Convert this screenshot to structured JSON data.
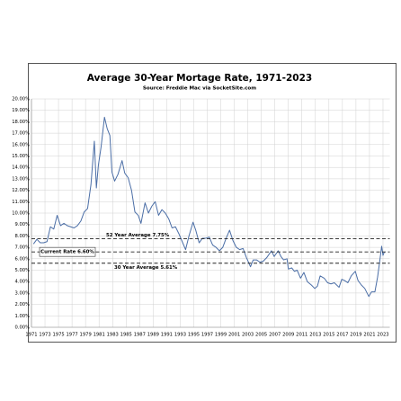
{
  "chart_data": {
    "type": "line",
    "title": "Average 30-Year Mortage Rate, 1971-2023",
    "subtitle": "Source: Freddie Mac via SocketSite.com",
    "xlim": [
      1971,
      2024
    ],
    "xticks": [
      1971,
      1973,
      1975,
      1977,
      1979,
      1981,
      1983,
      1985,
      1987,
      1989,
      1991,
      1993,
      1995,
      1997,
      1999,
      2001,
      2003,
      2005,
      2007,
      2009,
      2011,
      2013,
      2015,
      2017,
      2019,
      2021,
      2023
    ],
    "ylim": [
      0,
      20
    ],
    "yticks": [
      {
        "value": 0,
        "label": "0.00%"
      },
      {
        "value": 1,
        "label": "1.00%"
      },
      {
        "value": 2,
        "label": "2.00%"
      },
      {
        "value": 3,
        "label": "3.00%"
      },
      {
        "value": 4,
        "label": "4.00%"
      },
      {
        "value": 5,
        "label": "5.00%"
      },
      {
        "value": 6,
        "label": "6.00%"
      },
      {
        "value": 7,
        "label": "7.00%"
      },
      {
        "value": 8,
        "label": "8.00%"
      },
      {
        "value": 9,
        "label": "9.00%"
      },
      {
        "value": 10,
        "label": "10.00%"
      },
      {
        "value": 11,
        "label": "11.00%"
      },
      {
        "value": 12,
        "label": "12.00%"
      },
      {
        "value": 13,
        "label": "13.00%"
      },
      {
        "value": 14,
        "label": "14.00%"
      },
      {
        "value": 15,
        "label": "15.00%"
      },
      {
        "value": 16,
        "label": "16.00%"
      },
      {
        "value": 17,
        "label": "17.00%"
      },
      {
        "value": 18,
        "label": "18.00%"
      },
      {
        "value": 19,
        "label": "19.00%"
      },
      {
        "value": 20,
        "label": "20.00%"
      }
    ],
    "grid": true,
    "series": [
      {
        "color": "#4b6ea6",
        "x": [
          1971.3,
          1971.8,
          1972.3,
          1972.8,
          1973.3,
          1973.8,
          1974.3,
          1974.8,
          1975.3,
          1975.8,
          1976.3,
          1976.8,
          1977.3,
          1977.8,
          1978.3,
          1978.8,
          1979.3,
          1979.8,
          1980.3,
          1980.6,
          1980.9,
          1981.3,
          1981.8,
          1982.2,
          1982.6,
          1982.9,
          1983.3,
          1983.8,
          1984.4,
          1984.8,
          1985.3,
          1985.8,
          1986.3,
          1986.8,
          1987.2,
          1987.8,
          1988.3,
          1988.8,
          1989.3,
          1989.8,
          1990.3,
          1990.8,
          1991.3,
          1991.8,
          1992.3,
          1992.8,
          1993.3,
          1993.8,
          1994.3,
          1994.9,
          1995.3,
          1995.8,
          1996.3,
          1996.8,
          1997.3,
          1997.8,
          1998.3,
          1998.8,
          1999.3,
          1999.8,
          2000.3,
          2000.8,
          2001.3,
          2001.8,
          2002.3,
          2002.8,
          2003.4,
          2003.8,
          2004.3,
          2004.8,
          2005.3,
          2005.8,
          2006.5,
          2006.9,
          2007.5,
          2007.9,
          2008.3,
          2008.8,
          2009.0,
          2009.5,
          2009.9,
          2010.3,
          2010.8,
          2011.3,
          2011.8,
          2012.4,
          2012.9,
          2013.3,
          2013.7,
          2014.3,
          2014.8,
          2015.3,
          2015.8,
          2016.5,
          2016.9,
          2017.3,
          2017.8,
          2018.3,
          2018.9,
          2019.3,
          2019.8,
          2020.3,
          2020.9,
          2021.3,
          2021.8,
          2022.2,
          2022.5,
          2022.8,
          2023.0,
          2023.2
        ],
        "values": [
          7.3,
          7.7,
          7.4,
          7.4,
          7.5,
          8.8,
          8.6,
          9.8,
          8.9,
          9.1,
          8.9,
          8.8,
          8.7,
          8.9,
          9.3,
          10.1,
          10.4,
          12.5,
          16.3,
          12.2,
          14.2,
          15.8,
          18.4,
          17.4,
          16.8,
          13.6,
          12.8,
          13.4,
          14.6,
          13.5,
          13.1,
          12.0,
          10.1,
          9.8,
          9.1,
          10.9,
          10.0,
          10.6,
          11.0,
          9.8,
          10.3,
          10.0,
          9.5,
          8.7,
          8.8,
          8.2,
          7.5,
          6.8,
          8.0,
          9.2,
          8.5,
          7.4,
          7.8,
          7.8,
          7.9,
          7.2,
          7.0,
          6.7,
          7.0,
          7.8,
          8.5,
          7.6,
          7.0,
          6.8,
          6.9,
          6.1,
          5.3,
          5.9,
          5.9,
          5.7,
          5.8,
          6.1,
          6.7,
          6.2,
          6.7,
          6.2,
          5.9,
          6.0,
          5.1,
          5.2,
          4.9,
          5.0,
          4.3,
          4.8,
          4.0,
          3.7,
          3.4,
          3.6,
          4.5,
          4.3,
          3.9,
          3.8,
          3.9,
          3.5,
          4.2,
          4.1,
          3.9,
          4.5,
          4.9,
          4.1,
          3.7,
          3.4,
          2.7,
          3.1,
          3.1,
          4.4,
          5.7,
          7.1,
          6.3,
          6.6
        ]
      }
    ],
    "reference_lines": [
      {
        "label": "52 Year Average 7.75%",
        "value": 7.75
      },
      {
        "label": "Current Rate 6.60%",
        "value": 6.6
      },
      {
        "label": "30 Year Average 5.61%",
        "value": 5.61
      }
    ]
  }
}
